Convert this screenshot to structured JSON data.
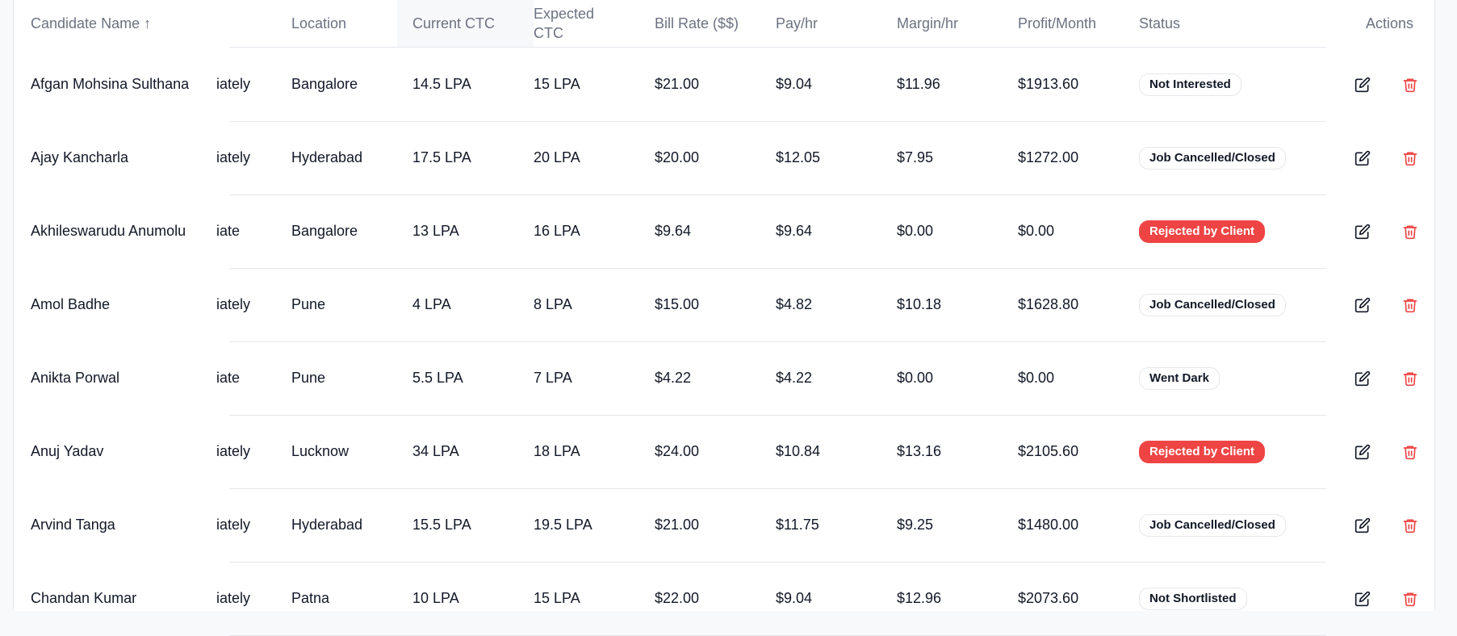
{
  "header": {
    "candidate_name": "Candidate Name ↑",
    "location": "Location",
    "current_ctc": "Current CTC",
    "expected_ctc_line1": "Expected",
    "expected_ctc_line2": "CTC",
    "bill_rate": "Bill Rate ($$)",
    "pay_hr": "Pay/hr",
    "margin_hr": "Margin/hr",
    "profit_month": "Profit/Month",
    "status": "Status",
    "actions": "Actions"
  },
  "colors": {
    "danger": "#ef4444",
    "edit_icon": "#111827",
    "delete_icon": "#ef4444"
  },
  "icons": {
    "edit": "edit-icon",
    "delete": "trash-icon"
  },
  "rows": [
    {
      "name": "Afgan Mohsina Sulthana",
      "notice": "iately",
      "location": "Bangalore",
      "current_ctc": "14.5 LPA",
      "expected_ctc": "15 LPA",
      "bill_rate": "$21.00",
      "pay_hr": "$9.04",
      "margin_hr": "$11.96",
      "profit_month": "$1913.60",
      "status": "Not Interested",
      "status_variant": "neutral"
    },
    {
      "name": "Ajay Kancharla",
      "notice": "iately",
      "location": "Hyderabad",
      "current_ctc": "17.5 LPA",
      "expected_ctc": "20 LPA",
      "bill_rate": "$20.00",
      "pay_hr": "$12.05",
      "margin_hr": "$7.95",
      "profit_month": "$1272.00",
      "status": "Job Cancelled/Closed",
      "status_variant": "neutral"
    },
    {
      "name": "Akhileswarudu Anumolu",
      "notice": "iate",
      "location": "Bangalore",
      "current_ctc": "13 LPA",
      "expected_ctc": "16 LPA",
      "bill_rate": "$9.64",
      "pay_hr": "$9.64",
      "margin_hr": "$0.00",
      "profit_month": "$0.00",
      "status": "Rejected by Client",
      "status_variant": "danger"
    },
    {
      "name": "Amol Badhe",
      "notice": "iately",
      "location": "Pune",
      "current_ctc": "4 LPA",
      "expected_ctc": "8 LPA",
      "bill_rate": "$15.00",
      "pay_hr": "$4.82",
      "margin_hr": "$10.18",
      "profit_month": "$1628.80",
      "status": "Job Cancelled/Closed",
      "status_variant": "neutral"
    },
    {
      "name": "Anikta Porwal",
      "notice": "iate",
      "location": "Pune",
      "current_ctc": "5.5 LPA",
      "expected_ctc": "7 LPA",
      "bill_rate": "$4.22",
      "pay_hr": "$4.22",
      "margin_hr": "$0.00",
      "profit_month": "$0.00",
      "status": "Went Dark",
      "status_variant": "neutral"
    },
    {
      "name": "Anuj Yadav",
      "notice": "iately",
      "location": "Lucknow",
      "current_ctc": "34 LPA",
      "expected_ctc": "18 LPA",
      "bill_rate": "$24.00",
      "pay_hr": "$10.84",
      "margin_hr": "$13.16",
      "profit_month": "$2105.60",
      "status": "Rejected by Client",
      "status_variant": "danger"
    },
    {
      "name": "Arvind Tanga",
      "notice": "iately",
      "location": "Hyderabad",
      "current_ctc": "15.5 LPA",
      "expected_ctc": "19.5 LPA",
      "bill_rate": "$21.00",
      "pay_hr": "$11.75",
      "margin_hr": "$9.25",
      "profit_month": "$1480.00",
      "status": "Job Cancelled/Closed",
      "status_variant": "neutral"
    },
    {
      "name": "Chandan Kumar",
      "notice": "iately",
      "location": "Patna",
      "current_ctc": "10 LPA",
      "expected_ctc": "15 LPA",
      "bill_rate": "$22.00",
      "pay_hr": "$9.04",
      "margin_hr": "$12.96",
      "profit_month": "$2073.60",
      "status": "Not Shortlisted",
      "status_variant": "neutral"
    }
  ]
}
